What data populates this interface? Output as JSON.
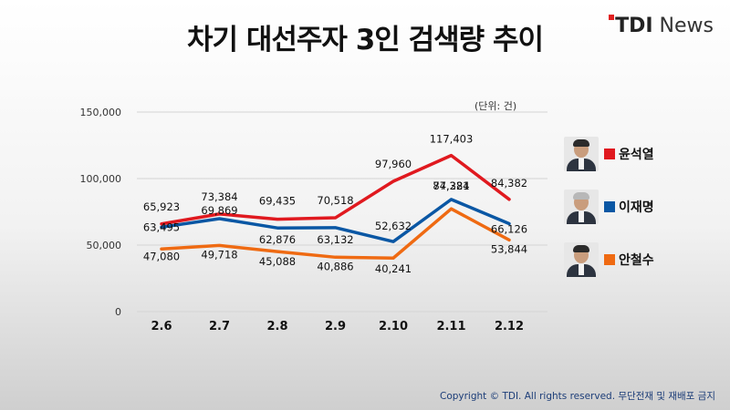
{
  "header": {
    "title": "차기 대선주자 3인 검색량 추이",
    "brand_tdi": "TDI",
    "brand_news": "News"
  },
  "unit_note": "(단위: 건)",
  "footer": {
    "copyright": "Copyright © TDI. All rights reserved. 무단전재 및 재배포 금지"
  },
  "colors": {
    "red": "#e0191f",
    "blue": "#0a57a4",
    "orange": "#ef6a12"
  },
  "chart_data": {
    "type": "line",
    "title": "차기 대선주자 3인 검색량 추이",
    "xlabel": "",
    "ylabel": "",
    "categories": [
      "2.6",
      "2.7",
      "2.8",
      "2.9",
      "2.10",
      "2.11",
      "2.12"
    ],
    "y_ticks": [
      "0",
      "50,000",
      "100,000",
      "150,000"
    ],
    "ylim": [
      0,
      150000
    ],
    "grid": true,
    "legend_position": "right",
    "series": [
      {
        "name": "윤석열",
        "color": "#e0191f",
        "values": [
          65923,
          73384,
          69435,
          70518,
          97960,
          117403,
          84382
        ],
        "labels": [
          "65,923",
          "73,384",
          "69,435",
          "70,518",
          "97,960",
          "117,403",
          "84,382"
        ]
      },
      {
        "name": "이재명",
        "color": "#0a57a4",
        "values": [
          63495,
          69869,
          62876,
          63132,
          52632,
          84321,
          66126
        ],
        "labels": [
          "63,495",
          "69,869",
          "62,876",
          "63,132",
          "52,632",
          "84,321",
          "66,126"
        ]
      },
      {
        "name": "안철수",
        "color": "#ef6a12",
        "values": [
          47080,
          49718,
          45088,
          40886,
          40241,
          77284,
          53844
        ],
        "labels": [
          "47,080",
          "49,718",
          "45,088",
          "40,886",
          "40,241",
          "77,284",
          "53,844"
        ]
      }
    ]
  }
}
